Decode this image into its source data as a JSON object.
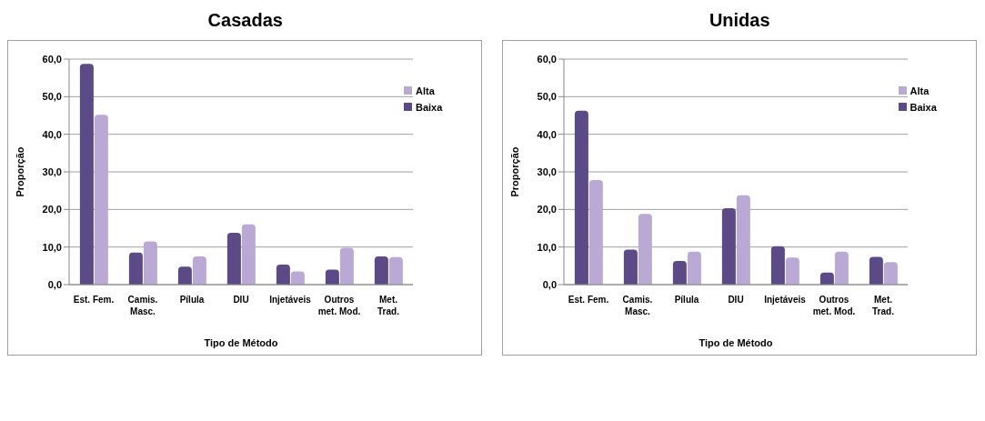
{
  "chart_data": [
    {
      "type": "bar",
      "title": "Casadas",
      "xlabel": "Tipo de Método",
      "ylabel": "Proporção",
      "categories": [
        "Est. Fem.",
        "Camis. Masc.",
        "Pílula",
        "DIU",
        "Injetáveis",
        "Outros met. Mod.",
        "Met. Trad."
      ],
      "series": [
        {
          "name": "Baixa",
          "color": "#5b4a85",
          "values": [
            58.7,
            8.5,
            4.8,
            13.8,
            5.3,
            4.0,
            7.5
          ]
        },
        {
          "name": "Alta",
          "color": "#b9a9d4",
          "values": [
            45.2,
            11.5,
            7.5,
            16.0,
            3.5,
            9.8,
            7.3
          ]
        }
      ],
      "ylim": [
        0,
        60
      ],
      "yticks": [
        {
          "value": 0,
          "label": "0,0"
        },
        {
          "value": 10,
          "label": "10,0"
        },
        {
          "value": 20,
          "label": "20,0"
        },
        {
          "value": 30,
          "label": "30,0"
        },
        {
          "value": 40,
          "label": "40,0"
        },
        {
          "value": 50,
          "label": "50,0"
        },
        {
          "value": 60,
          "label": "60,0"
        }
      ],
      "grid": "y",
      "legend": "top right"
    },
    {
      "type": "bar",
      "title": "Unidas",
      "xlabel": "Tipo de Método",
      "ylabel": "Proporção",
      "categories": [
        "Est. Fem.",
        "Camis. Masc.",
        "Pílula",
        "DIU",
        "Injetáveis",
        "Outros met. Mod.",
        "Met. Trad."
      ],
      "series": [
        {
          "name": "Baixa",
          "color": "#5b4a85",
          "values": [
            46.3,
            9.3,
            6.3,
            20.3,
            10.2,
            3.2,
            7.4
          ]
        },
        {
          "name": "Alta",
          "color": "#b9a9d4",
          "values": [
            27.8,
            18.8,
            8.8,
            23.8,
            7.2,
            8.8,
            6.0
          ]
        }
      ],
      "ylim": [
        0,
        60
      ],
      "yticks": [
        {
          "value": 0,
          "label": "0,0"
        },
        {
          "value": 10,
          "label": "10,0"
        },
        {
          "value": 20,
          "label": "20,0"
        },
        {
          "value": 30,
          "label": "30,0"
        },
        {
          "value": 40,
          "label": "40,0"
        },
        {
          "value": 50,
          "label": "50,0"
        },
        {
          "value": 60,
          "label": "60,0"
        }
      ],
      "grid": "y",
      "legend": "top right"
    }
  ]
}
